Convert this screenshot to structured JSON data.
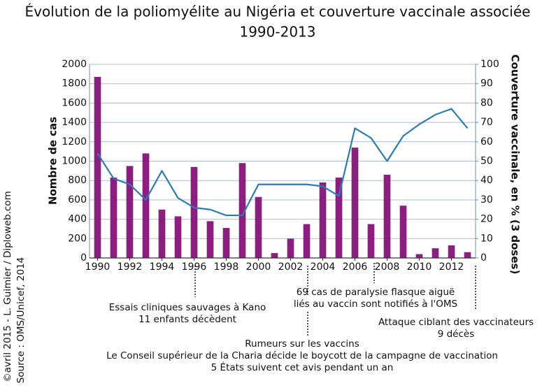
{
  "chart_data": {
    "type": "combo",
    "title": "Évolution de la poliomyélite au Nigéria et couverture vaccinale associée",
    "subtitle": "1990-2013",
    "y_label": "Nombre de cas",
    "y2_label": "Couverture vaccinale, en % (3 doses)",
    "x": [
      1990,
      1991,
      1992,
      1993,
      1994,
      1995,
      1996,
      1997,
      1998,
      1999,
      2000,
      2001,
      2002,
      2003,
      2004,
      2005,
      2006,
      2007,
      2008,
      2009,
      2010,
      2011,
      2012,
      2013
    ],
    "xlim": [
      1989.5,
      2013.5
    ],
    "xticks": [
      1990,
      1992,
      1994,
      1996,
      1998,
      2000,
      2002,
      2004,
      2006,
      2008,
      2010,
      2012
    ],
    "ylim": [
      0,
      2000
    ],
    "yticks": [
      0,
      200,
      400,
      600,
      800,
      1000,
      1200,
      1400,
      1600,
      1800,
      2000
    ],
    "y2lim": [
      0,
      100
    ],
    "y2ticks": [
      0,
      10,
      20,
      30,
      40,
      50,
      60,
      70,
      80,
      90,
      100
    ],
    "grid": true,
    "series": [
      {
        "type": "bar",
        "color": "#8b1e7f",
        "values": [
          1870,
          830,
          950,
          1080,
          500,
          430,
          940,
          380,
          310,
          980,
          630,
          50,
          200,
          350,
          780,
          830,
          1140,
          350,
          860,
          540,
          40,
          100,
          130,
          60
        ]
      },
      {
        "type": "line",
        "color": "#2b7bb9",
        "axis": "y2",
        "values": [
          54,
          41,
          38,
          30,
          45,
          31,
          26,
          25,
          22,
          22,
          38,
          38,
          38,
          38,
          37,
          32,
          67,
          62,
          50,
          63,
          69,
          74,
          77,
          67
        ]
      }
    ],
    "annotations": [
      [
        "Essais cliniques sauvages à Kano",
        "11 enfants décèdent"
      ],
      [
        "Rumeurs sur les vaccins",
        "Le Conseil supérieur de la Charia décide le boycott de la campagne de vaccination",
        "5 États suivent cet avis pendant un an"
      ],
      [
        "69 cas de paralysie flasque aiguë",
        "liés au vaccin sont notifiés à l'OMS"
      ],
      [
        "Attaque ciblant des vaccinateurs",
        "9 décès"
      ]
    ],
    "credits": [
      "©avril 2015 - L. Guimier / Diploweb.com",
      "Source : OMS/Unicef, 2014"
    ]
  }
}
